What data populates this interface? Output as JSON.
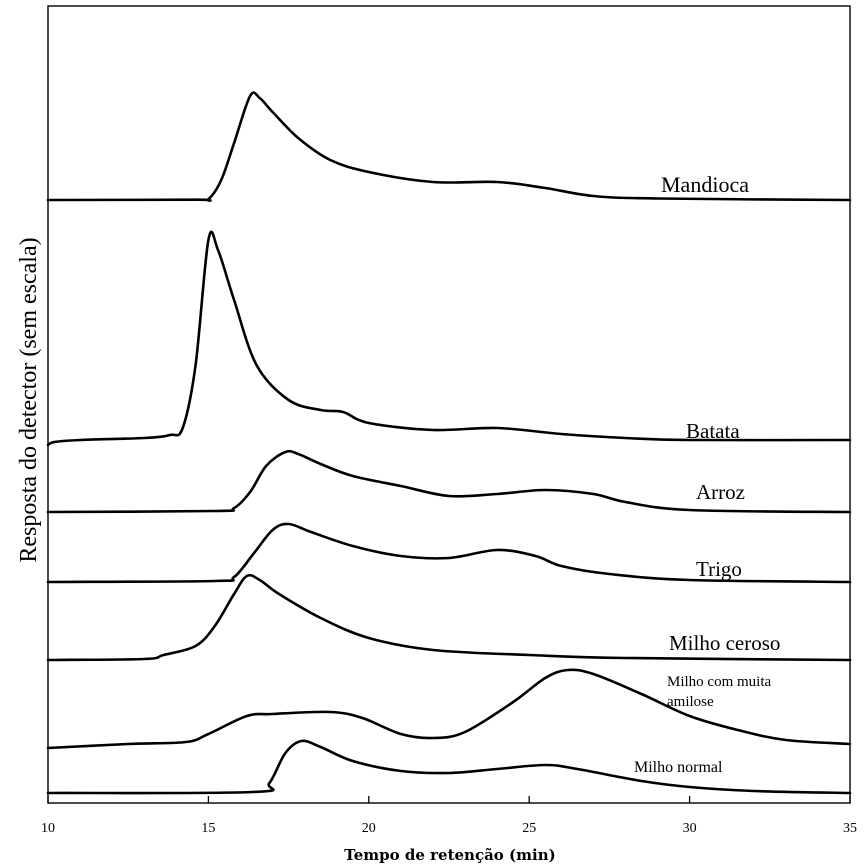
{
  "chart_data": {
    "type": "line",
    "xlabel": "Tempo de retenção (min)",
    "ylabel": "Resposta do detector (sem escala)",
    "xlim": [
      10,
      35
    ],
    "x_ticks": [
      "10",
      "15",
      "20",
      "25",
      "30",
      "35"
    ],
    "y_scale": "none (curves offset vertically)",
    "grid": false,
    "series": [
      {
        "name": "Mandioca",
        "points": [
          [
            10,
            0
          ],
          [
            14.6,
            0.3
          ],
          [
            15,
            1
          ],
          [
            15.4,
            20
          ],
          [
            15.8,
            57
          ],
          [
            16.3,
            104
          ],
          [
            16.6,
            102
          ],
          [
            17,
            88
          ],
          [
            17.8,
            62
          ],
          [
            18.8,
            40
          ],
          [
            20,
            28
          ],
          [
            22,
            18
          ],
          [
            24,
            18
          ],
          [
            25.5,
            12
          ],
          [
            27,
            4
          ],
          [
            29,
            1.5
          ],
          [
            35,
            0
          ]
        ]
      },
      {
        "name": "Batata",
        "points": [
          [
            10,
            -5
          ],
          [
            10.2,
            -2
          ],
          [
            11,
            0
          ],
          [
            13,
            2
          ],
          [
            13.8,
            5
          ],
          [
            14.2,
            12
          ],
          [
            14.6,
            75
          ],
          [
            15,
            200
          ],
          [
            15.3,
            190
          ],
          [
            15.8,
            140
          ],
          [
            16.5,
            75
          ],
          [
            17.5,
            40
          ],
          [
            18.5,
            30
          ],
          [
            19.2,
            28
          ],
          [
            20,
            17
          ],
          [
            22,
            10
          ],
          [
            24,
            12
          ],
          [
            26,
            6
          ],
          [
            28,
            2
          ],
          [
            30,
            0
          ],
          [
            35,
            0
          ]
        ]
      },
      {
        "name": "Arroz",
        "points": [
          [
            10,
            0
          ],
          [
            15.2,
            1
          ],
          [
            15.8,
            4
          ],
          [
            16.3,
            20
          ],
          [
            16.8,
            46
          ],
          [
            17.4,
            60
          ],
          [
            17.8,
            58
          ],
          [
            18.5,
            48
          ],
          [
            19.5,
            36
          ],
          [
            21,
            26
          ],
          [
            22.5,
            16
          ],
          [
            24,
            18
          ],
          [
            25.5,
            22
          ],
          [
            27,
            18
          ],
          [
            28,
            10
          ],
          [
            30,
            2
          ],
          [
            35,
            0
          ]
        ]
      },
      {
        "name": "Trigo",
        "points": [
          [
            10,
            0
          ],
          [
            15.2,
            1
          ],
          [
            15.8,
            5
          ],
          [
            16.4,
            28
          ],
          [
            17,
            52
          ],
          [
            17.5,
            58
          ],
          [
            18.2,
            50
          ],
          [
            19.5,
            36
          ],
          [
            21,
            26
          ],
          [
            22.5,
            24
          ],
          [
            24,
            32
          ],
          [
            25.2,
            26
          ],
          [
            26,
            16
          ],
          [
            27.5,
            8
          ],
          [
            30,
            2
          ],
          [
            35,
            0
          ]
        ]
      },
      {
        "name": "Milho ceroso",
        "points": [
          [
            10,
            0
          ],
          [
            13,
            1
          ],
          [
            13.6,
            5
          ],
          [
            14.6,
            14
          ],
          [
            15.2,
            34
          ],
          [
            15.8,
            66
          ],
          [
            16.2,
            84
          ],
          [
            16.6,
            80
          ],
          [
            17.2,
            66
          ],
          [
            18.5,
            42
          ],
          [
            20,
            22
          ],
          [
            22,
            10
          ],
          [
            25,
            5
          ],
          [
            28,
            2
          ],
          [
            35,
            0
          ]
        ]
      },
      {
        "name": "Milho com muita amilose",
        "points": [
          [
            10,
            0
          ],
          [
            12.5,
            4
          ],
          [
            14.3,
            6
          ],
          [
            15,
            14
          ],
          [
            16.2,
            32
          ],
          [
            17,
            34
          ],
          [
            18.8,
            36
          ],
          [
            19.8,
            30
          ],
          [
            21,
            14
          ],
          [
            22,
            10
          ],
          [
            23,
            16
          ],
          [
            24.5,
            46
          ],
          [
            25.5,
            70
          ],
          [
            26.2,
            78
          ],
          [
            27,
            74
          ],
          [
            28.5,
            54
          ],
          [
            30,
            32
          ],
          [
            31.5,
            18
          ],
          [
            33,
            8
          ],
          [
            35,
            4
          ]
        ]
      },
      {
        "name": "Milho normal",
        "points": [
          [
            10,
            0
          ],
          [
            16.4,
            1
          ],
          [
            16.9,
            10
          ],
          [
            17.4,
            40
          ],
          [
            17.9,
            52
          ],
          [
            18.5,
            46
          ],
          [
            19.5,
            32
          ],
          [
            21,
            22
          ],
          [
            22.5,
            20
          ],
          [
            24,
            24
          ],
          [
            25.5,
            28
          ],
          [
            26.5,
            24
          ],
          [
            28.5,
            12
          ],
          [
            30,
            6
          ],
          [
            32,
            2
          ],
          [
            35,
            0
          ]
        ]
      }
    ]
  },
  "labels": {
    "mandioca": "Mandioca",
    "batata": "Batata",
    "arroz": "Arroz",
    "trigo": "Trigo",
    "ceroso": "Milho ceroso",
    "amilose_1": "Milho com muita",
    "amilose_2": "amilose",
    "normal": "Milho normal"
  }
}
